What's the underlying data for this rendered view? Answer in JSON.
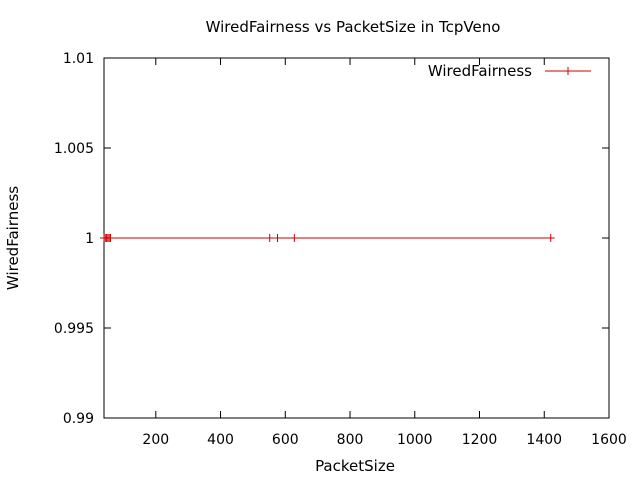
{
  "chart_data": {
    "type": "line",
    "title": "WiredFairness vs PacketSize  in TcpVeno",
    "xlabel": "PacketSize",
    "ylabel": "WiredFairness",
    "xlim": [
      40,
      1600
    ],
    "ylim": [
      0.99,
      1.01
    ],
    "x_ticks": [
      200,
      400,
      600,
      800,
      1000,
      1200,
      1400,
      1600
    ],
    "y_ticks": [
      0.99,
      0.995,
      1,
      1.005,
      1.01
    ],
    "y_tick_labels": [
      "0.99",
      "0.995",
      "1",
      "1.005",
      "1.01"
    ],
    "grid": false,
    "legend_position": "top-right",
    "series": [
      {
        "name": "WiredFairness",
        "color": "#cc0000",
        "x": [
          40,
          44,
          48,
          52,
          56,
          60,
          552,
          576,
          628,
          1420
        ],
        "y": [
          1,
          1,
          1,
          1,
          1,
          1,
          1,
          1,
          1,
          1
        ]
      }
    ]
  }
}
